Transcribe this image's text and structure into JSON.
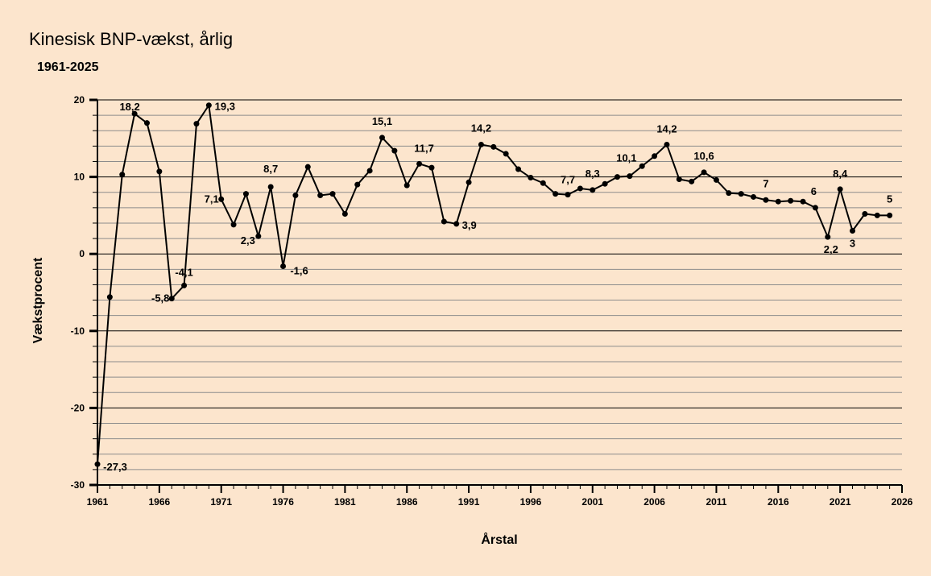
{
  "chart_data": {
    "type": "line",
    "title": "Kinesisk BNP-vækst, årlig",
    "subtitle": "1961-2025",
    "xlabel": "Årstal",
    "ylabel": "Vækstprocent",
    "xlim": [
      1961,
      2026
    ],
    "ylim": [
      -30,
      20
    ],
    "x_ticks": [
      1961,
      1966,
      1971,
      1976,
      1981,
      1986,
      1991,
      1996,
      2001,
      2006,
      2011,
      2016,
      2021,
      2026
    ],
    "y_ticks": [
      -30,
      -20,
      -10,
      0,
      10,
      20
    ],
    "grid": true,
    "line_color": "#000000",
    "background_color": "#fce5cd",
    "series": [
      {
        "x": [
          1961,
          1962,
          1963,
          1964,
          1965,
          1966,
          1967,
          1968,
          1969,
          1970,
          1971,
          1972,
          1973,
          1974,
          1975,
          1976,
          1977,
          1978,
          1979,
          1980,
          1981,
          1982,
          1983,
          1984,
          1985,
          1986,
          1987,
          1988,
          1989,
          1990,
          1991,
          1992,
          1993,
          1994,
          1995,
          1996,
          1997,
          1998,
          1999,
          2000,
          2001,
          2002,
          2003,
          2004,
          2005,
          2006,
          2007,
          2008,
          2009,
          2010,
          2011,
          2012,
          2013,
          2014,
          2015,
          2016,
          2017,
          2018,
          2019,
          2020,
          2021,
          2022,
          2023,
          2024,
          2025
        ],
        "values": [
          -27.3,
          -5.6,
          10.3,
          18.2,
          17.0,
          10.7,
          -5.8,
          -4.1,
          16.9,
          19.3,
          7.1,
          3.8,
          7.8,
          2.3,
          8.7,
          -1.6,
          7.6,
          11.3,
          7.6,
          7.8,
          5.2,
          9.0,
          10.8,
          15.1,
          13.4,
          8.9,
          11.7,
          11.2,
          4.2,
          3.9,
          9.3,
          14.2,
          13.9,
          13.0,
          11.0,
          9.9,
          9.2,
          7.8,
          7.7,
          8.5,
          8.3,
          9.1,
          10.0,
          10.1,
          11.4,
          12.7,
          14.2,
          9.7,
          9.4,
          10.6,
          9.6,
          7.9,
          7.8,
          7.4,
          7.0,
          6.8,
          6.9,
          6.8,
          6.0,
          2.2,
          8.4,
          3.0,
          5.2,
          5.0,
          5.0
        ]
      }
    ],
    "annotations": [
      {
        "x": 1961,
        "text": "-27,3"
      },
      {
        "x": 1964,
        "text": "18,2"
      },
      {
        "x": 1967,
        "text": "-5,8"
      },
      {
        "x": 1968,
        "text": "-4,1"
      },
      {
        "x": 1970,
        "text": "19,3"
      },
      {
        "x": 1971,
        "text": "7,1"
      },
      {
        "x": 1974,
        "text": "2,3"
      },
      {
        "x": 1975,
        "text": "8,7"
      },
      {
        "x": 1976,
        "text": "-1,6"
      },
      {
        "x": 1984,
        "text": "15,1"
      },
      {
        "x": 1987,
        "text": "11,7"
      },
      {
        "x": 1990,
        "text": "3,9"
      },
      {
        "x": 1992,
        "text": "14,2"
      },
      {
        "x": 1999,
        "text": "7,7"
      },
      {
        "x": 2001,
        "text": "8,3"
      },
      {
        "x": 2004,
        "text": "10,1"
      },
      {
        "x": 2007,
        "text": "14,2"
      },
      {
        "x": 2010,
        "text": "10,6"
      },
      {
        "x": 2015,
        "text": "7"
      },
      {
        "x": 2019,
        "text": "6"
      },
      {
        "x": 2020,
        "text": "2,2"
      },
      {
        "x": 2021,
        "text": "8,4"
      },
      {
        "x": 2022,
        "text": "3"
      },
      {
        "x": 2025,
        "text": "5"
      }
    ]
  }
}
